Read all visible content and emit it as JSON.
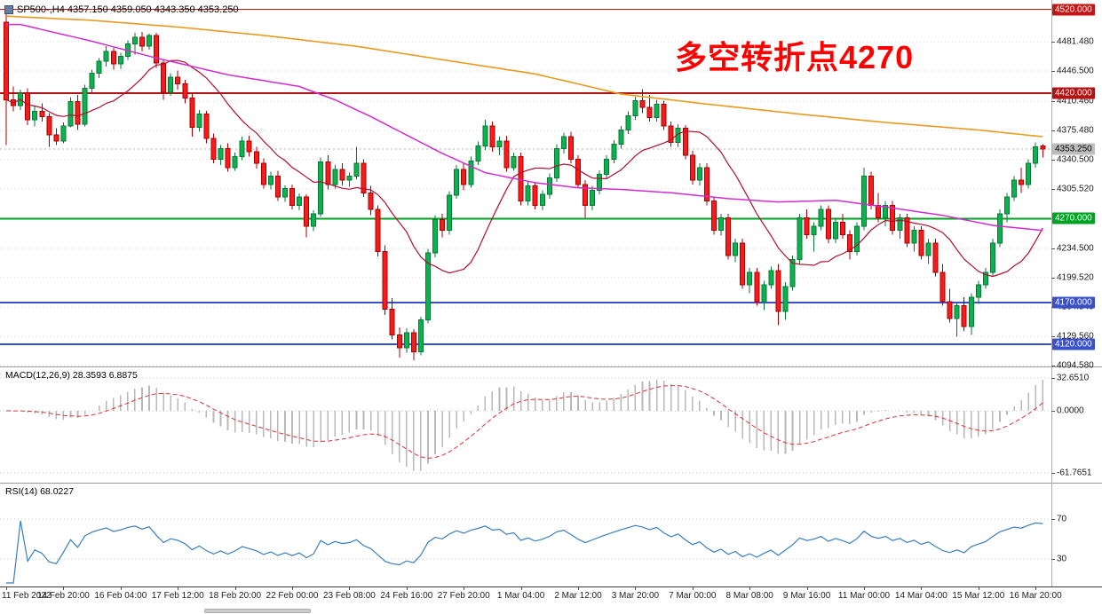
{
  "symbol_bar": {
    "icon": "chart-icon",
    "text": "SP500-,H4 4357.150 4359.050 4343.350 4353.250"
  },
  "annotation": {
    "text": "多空转折点4270",
    "color": "#ff0000"
  },
  "price_axis": {
    "grid_labels": [
      "4481.480",
      "4446.500",
      "4410.460",
      "4375.480",
      "4340.500",
      "4305.520",
      "4234.500",
      "4199.520",
      "4164.540",
      "4129.560",
      "4094.580"
    ],
    "levels": [
      {
        "label": "4520.000",
        "value": 4520.0,
        "box_color": "#c41616",
        "text_color": "#ffffff",
        "line_color": "#c41616",
        "line_width": 1,
        "line_style": "solid"
      },
      {
        "label": "4420.000",
        "value": 4420.0,
        "box_color": "#b31212",
        "text_color": "#ffffff",
        "line_color": "#b31212",
        "line_width": 2,
        "line_style": "solid"
      },
      {
        "label": "4353.250",
        "value": 4353.25,
        "box_color": "#bdbdbd",
        "text_color": "#000000",
        "line_color": "#b0b0b0",
        "line_width": 1,
        "line_style": "dotted"
      },
      {
        "label": "4270.000",
        "value": 4270.0,
        "box_color": "#00a223",
        "text_color": "#ffffff",
        "line_color": "#00a223",
        "line_width": 2,
        "line_style": "solid"
      },
      {
        "label": "4170.000",
        "value": 4170.0,
        "box_color": "#3a50c8",
        "text_color": "#ffffff",
        "line_color": "#3a50c8",
        "line_width": 2,
        "line_style": "solid"
      },
      {
        "label": "4120.000",
        "value": 4120.0,
        "box_color": "#3a50c8",
        "text_color": "#ffffff",
        "line_color": "#3a50c8",
        "line_width": 2,
        "line_style": "solid"
      }
    ]
  },
  "macd_panel": {
    "title": "MACD(12,26,9) 28.3593 6.8875",
    "params": {
      "fast": 12,
      "slow": 26,
      "signal": 9
    },
    "main_value": "28.3593",
    "signal_value": "6.8875",
    "axis_labels": [
      {
        "text": "32.6510",
        "value": 32.651
      },
      {
        "text": "0.0000",
        "value": 0.0
      },
      {
        "text": "-61.7651",
        "value": -61.7651
      }
    ],
    "colors": {
      "histogram": "#b8b8b8",
      "signal": "#e03030"
    }
  },
  "rsi_panel": {
    "title": "RSI(14) 68.0227",
    "period": 14,
    "current_value": "68.0227",
    "level_labels": [
      {
        "text": "70",
        "value": 70
      },
      {
        "text": "30",
        "value": 30
      }
    ],
    "color": "#3a7ebf"
  },
  "chart_data": {
    "type": "candlestick",
    "symbol": "SP500-",
    "timeframe": "H4",
    "title": "SP500- H4 candlestick chart with MACD and RSI",
    "ohlc_last": {
      "open": 4357.15,
      "high": 4359.05,
      "low": 4343.35,
      "close": 4353.25
    },
    "ylim": {
      "top": 4531.3,
      "bottom": 4093.5
    },
    "grid": "dotted-horizontal",
    "time_labels": [
      "11 Feb 2022",
      "14 Feb 20:00",
      "16 Feb 04:00",
      "17 Feb 12:00",
      "18 Feb 20:00",
      "22 Feb 00:00",
      "23 Feb 08:00",
      "24 Feb 16:00",
      "27 Feb 20:00",
      "1 Mar 04:00",
      "2 Mar 12:00",
      "3 Mar 20:00",
      "7 Mar 00:00",
      "8 Mar 08:00",
      "9 Mar 16:00",
      "11 Mar 00:00",
      "14 Mar 04:00",
      "15 Mar 12:00",
      "16 Mar 20:00"
    ],
    "time_label_step": 8,
    "candles": [
      [
        4505,
        4522,
        4358,
        4412
      ],
      [
        4412,
        4428,
        4398,
        4405
      ],
      [
        4405,
        4424,
        4400,
        4420
      ],
      [
        4420,
        4426,
        4382,
        4388
      ],
      [
        4388,
        4404,
        4380,
        4398
      ],
      [
        4398,
        4408,
        4386,
        4392
      ],
      [
        4392,
        4396,
        4356,
        4370
      ],
      [
        4370,
        4378,
        4358,
        4363
      ],
      [
        4363,
        4385,
        4360,
        4381
      ],
      [
        4381,
        4415,
        4379,
        4410
      ],
      [
        4410,
        4418,
        4376,
        4383
      ],
      [
        4383,
        4430,
        4380,
        4426
      ],
      [
        4426,
        4448,
        4420,
        4444
      ],
      [
        4444,
        4462,
        4438,
        4458
      ],
      [
        4458,
        4476,
        4452,
        4470
      ],
      [
        4470,
        4474,
        4448,
        4455
      ],
      [
        4455,
        4468,
        4449,
        4464
      ],
      [
        4464,
        4483,
        4460,
        4479
      ],
      [
        4479,
        4492,
        4466,
        4487
      ],
      [
        4487,
        4493,
        4470,
        4476
      ],
      [
        4476,
        4491,
        4472,
        4489
      ],
      [
        4489,
        4492,
        4450,
        4456
      ],
      [
        4456,
        4460,
        4412,
        4421
      ],
      [
        4421,
        4444,
        4417,
        4439
      ],
      [
        4439,
        4447,
        4424,
        4431
      ],
      [
        4431,
        4436,
        4408,
        4414
      ],
      [
        4414,
        4420,
        4368,
        4379
      ],
      [
        4379,
        4400,
        4374,
        4395
      ],
      [
        4395,
        4399,
        4360,
        4366
      ],
      [
        4366,
        4372,
        4336,
        4341
      ],
      [
        4341,
        4358,
        4334,
        4354
      ],
      [
        4354,
        4360,
        4326,
        4331
      ],
      [
        4331,
        4349,
        4327,
        4344
      ],
      [
        4344,
        4368,
        4340,
        4363
      ],
      [
        4363,
        4369,
        4344,
        4350
      ],
      [
        4350,
        4356,
        4330,
        4336
      ],
      [
        4336,
        4342,
        4306,
        4311
      ],
      [
        4311,
        4326,
        4305,
        4321
      ],
      [
        4321,
        4327,
        4291,
        4296
      ],
      [
        4296,
        4310,
        4290,
        4306
      ],
      [
        4306,
        4311,
        4281,
        4286
      ],
      [
        4286,
        4300,
        4280,
        4296
      ],
      [
        4296,
        4299,
        4248,
        4261
      ],
      [
        4261,
        4280,
        4255,
        4276
      ],
      [
        4276,
        4343,
        4272,
        4338
      ],
      [
        4338,
        4346,
        4305,
        4311
      ],
      [
        4311,
        4334,
        4306,
        4329
      ],
      [
        4329,
        4336,
        4310,
        4316
      ],
      [
        4316,
        4325,
        4308,
        4321
      ],
      [
        4321,
        4356,
        4317,
        4336
      ],
      [
        4336,
        4341,
        4296,
        4301
      ],
      [
        4301,
        4309,
        4274,
        4281
      ],
      [
        4281,
        4286,
        4225,
        4231
      ],
      [
        4231,
        4238,
        4155,
        4162
      ],
      [
        4162,
        4175,
        4126,
        4131
      ],
      [
        4131,
        4140,
        4104,
        4116
      ],
      [
        4116,
        4139,
        4110,
        4134
      ],
      [
        4134,
        4138,
        4101,
        4111
      ],
      [
        4111,
        4153,
        4107,
        4149
      ],
      [
        4149,
        4234,
        4145,
        4229
      ],
      [
        4229,
        4274,
        4224,
        4269
      ],
      [
        4269,
        4276,
        4248,
        4256
      ],
      [
        4256,
        4303,
        4251,
        4298
      ],
      [
        4298,
        4334,
        4294,
        4329
      ],
      [
        4329,
        4336,
        4304,
        4311
      ],
      [
        4311,
        4344,
        4307,
        4339
      ],
      [
        4339,
        4362,
        4334,
        4357
      ],
      [
        4357,
        4388,
        4352,
        4381
      ],
      [
        4381,
        4386,
        4350,
        4356
      ],
      [
        4356,
        4368,
        4346,
        4363
      ],
      [
        4363,
        4369,
        4326,
        4331
      ],
      [
        4331,
        4349,
        4327,
        4344
      ],
      [
        4344,
        4349,
        4286,
        4291
      ],
      [
        4291,
        4314,
        4286,
        4309
      ],
      [
        4309,
        4313,
        4281,
        4286
      ],
      [
        4286,
        4304,
        4280,
        4299
      ],
      [
        4299,
        4324,
        4294,
        4319
      ],
      [
        4319,
        4359,
        4314,
        4354
      ],
      [
        4354,
        4373,
        4348,
        4368
      ],
      [
        4368,
        4374,
        4336,
        4341
      ],
      [
        4341,
        4346,
        4306,
        4311
      ],
      [
        4311,
        4316,
        4271,
        4286
      ],
      [
        4286,
        4309,
        4280,
        4304
      ],
      [
        4304,
        4328,
        4299,
        4323
      ],
      [
        4323,
        4346,
        4318,
        4341
      ],
      [
        4341,
        4364,
        4336,
        4359
      ],
      [
        4359,
        4381,
        4354,
        4376
      ],
      [
        4376,
        4398,
        4371,
        4393
      ],
      [
        4393,
        4416,
        4388,
        4411
      ],
      [
        4411,
        4425,
        4396,
        4403
      ],
      [
        4403,
        4418,
        4386,
        4391
      ],
      [
        4391,
        4412,
        4386,
        4407
      ],
      [
        4407,
        4411,
        4376,
        4381
      ],
      [
        4381,
        4386,
        4356,
        4361
      ],
      [
        4361,
        4383,
        4356,
        4378
      ],
      [
        4378,
        4382,
        4341,
        4346
      ],
      [
        4346,
        4351,
        4311,
        4316
      ],
      [
        4316,
        4336,
        4310,
        4331
      ],
      [
        4331,
        4336,
        4286,
        4291
      ],
      [
        4291,
        4296,
        4251,
        4256
      ],
      [
        4256,
        4276,
        4250,
        4271
      ],
      [
        4271,
        4276,
        4221,
        4226
      ],
      [
        4226,
        4246,
        4218,
        4241
      ],
      [
        4241,
        4246,
        4186,
        4191
      ],
      [
        4191,
        4211,
        4181,
        4206
      ],
      [
        4206,
        4211,
        4166,
        4171
      ],
      [
        4171,
        4196,
        4161,
        4191
      ],
      [
        4191,
        4213,
        4186,
        4208
      ],
      [
        4208,
        4216,
        4143,
        4159
      ],
      [
        4159,
        4194,
        4149,
        4189
      ],
      [
        4189,
        4226,
        4184,
        4221
      ],
      [
        4221,
        4276,
        4216,
        4271
      ],
      [
        4271,
        4281,
        4246,
        4251
      ],
      [
        4251,
        4266,
        4231,
        4261
      ],
      [
        4261,
        4286,
        4256,
        4281
      ],
      [
        4281,
        4286,
        4241,
        4246
      ],
      [
        4246,
        4271,
        4241,
        4266
      ],
      [
        4266,
        4276,
        4246,
        4251
      ],
      [
        4251,
        4256,
        4221,
        4231
      ],
      [
        4231,
        4266,
        4226,
        4261
      ],
      [
        4261,
        4331,
        4256,
        4321
      ],
      [
        4321,
        4326,
        4281,
        4286
      ],
      [
        4286,
        4301,
        4266,
        4271
      ],
      [
        4271,
        4291,
        4261,
        4286
      ],
      [
        4286,
        4291,
        4251,
        4256
      ],
      [
        4256,
        4276,
        4246,
        4271
      ],
      [
        4271,
        4276,
        4236,
        4241
      ],
      [
        4241,
        4261,
        4231,
        4256
      ],
      [
        4256,
        4261,
        4221,
        4226
      ],
      [
        4226,
        4246,
        4216,
        4241
      ],
      [
        4241,
        4246,
        4201,
        4206
      ],
      [
        4206,
        4216,
        4166,
        4171
      ],
      [
        4171,
        4186,
        4146,
        4151
      ],
      [
        4151,
        4171,
        4129,
        4166
      ],
      [
        4166,
        4176,
        4136,
        4141
      ],
      [
        4141,
        4181,
        4131,
        4176
      ],
      [
        4176,
        4196,
        4168,
        4191
      ],
      [
        4191,
        4211,
        4186,
        4206
      ],
      [
        4206,
        4246,
        4201,
        4241
      ],
      [
        4241,
        4281,
        4236,
        4276
      ],
      [
        4276,
        4301,
        4266,
        4296
      ],
      [
        4296,
        4321,
        4291,
        4316
      ],
      [
        4316,
        4331,
        4301,
        4311
      ],
      [
        4311,
        4341,
        4306,
        4336
      ],
      [
        4336,
        4361,
        4331,
        4356
      ],
      [
        4357.15,
        4359.05,
        4343.35,
        4353.25
      ]
    ],
    "ma_orange_anchors": [
      [
        0,
        4512
      ],
      [
        12,
        4507
      ],
      [
        24,
        4499
      ],
      [
        36,
        4489
      ],
      [
        49,
        4476
      ],
      [
        61,
        4460
      ],
      [
        74,
        4443
      ],
      [
        86,
        4419
      ],
      [
        98,
        4407
      ],
      [
        111,
        4395
      ],
      [
        123,
        4385
      ],
      [
        136,
        4376
      ],
      [
        145,
        4368
      ]
    ],
    "ma_magenta_anchors": [
      [
        2,
        4502
      ],
      [
        12,
        4482
      ],
      [
        21,
        4462
      ],
      [
        31,
        4442
      ],
      [
        41,
        4428
      ],
      [
        46,
        4412
      ],
      [
        51,
        4392
      ],
      [
        56,
        4370
      ],
      [
        61,
        4348
      ],
      [
        67,
        4325
      ],
      [
        74,
        4313
      ],
      [
        80,
        4307
      ],
      [
        86,
        4305
      ],
      [
        93,
        4301
      ],
      [
        101,
        4294
      ],
      [
        108,
        4290
      ],
      [
        116,
        4292
      ],
      [
        123,
        4284
      ],
      [
        131,
        4274
      ],
      [
        138,
        4262
      ],
      [
        145,
        4256
      ]
    ],
    "ma_fast_period": 13,
    "colors": {
      "up": "#0db14e",
      "up_stroke": "#067a34",
      "down": "#f91b1b",
      "down_stroke": "#a80000",
      "ma_fast": "#b01030",
      "ma_orange": "#e89b1e",
      "ma_magenta": "#d02cd0",
      "grid": "#d4d4d4"
    }
  }
}
